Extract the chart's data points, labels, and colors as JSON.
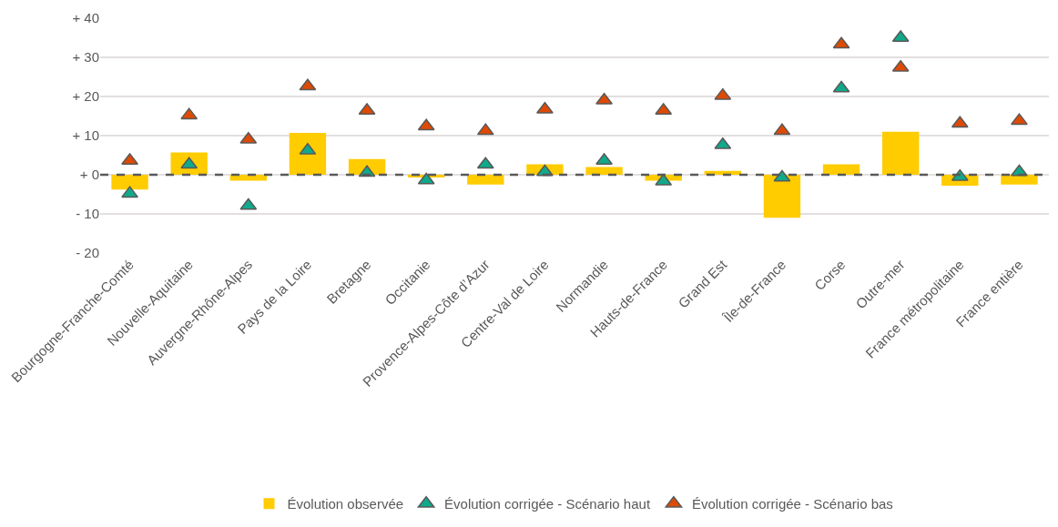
{
  "chart_data": {
    "type": "bar",
    "categories": [
      "Bourgogne-Franche-Comté",
      "Nouvelle-Aquitaine",
      "Auvergne-Rhône-Alpes",
      "Pays de la Loire",
      "Bretagne",
      "Occitanie",
      "Provence-Alpes-Côte d’Azur",
      "Centre-Val de Loire",
      "Normandie",
      "Hauts-de-France",
      "Grand Est",
      "Île-de-France",
      "Corse",
      "Outre-mer",
      "France métropolitaine",
      "France entière"
    ],
    "series": [
      {
        "name": "Évolution observée",
        "color": "#ffcc00",
        "values": [
          -3.8,
          5.7,
          -1.5,
          10.7,
          4,
          -0.7,
          -2.5,
          2.7,
          2,
          -1.5,
          1,
          -11,
          2.7,
          11,
          -2.8,
          -2.5
        ]
      },
      {
        "name": "Évolution corrigée - Scénario haut",
        "type": "scatter",
        "color": "#10a98a",
        "values": [
          -4.8,
          2.6,
          -7.9,
          6.2,
          0.5,
          -1.4,
          2.6,
          0.7,
          3.6,
          -1.7,
          7.6,
          -0.7,
          22.1,
          35,
          -0.5,
          0.7
        ]
      },
      {
        "name": "Évolution corrigée - Scénario bas",
        "type": "scatter",
        "color": "#de4a04",
        "values": [
          3.6,
          15.2,
          9,
          22.6,
          16.4,
          12.4,
          11.2,
          16.7,
          19,
          16.4,
          20.2,
          11.2,
          33.3,
          27.4,
          13.1,
          13.8
        ]
      }
    ],
    "ylim": [
      -20,
      40
    ],
    "yticks": [
      {
        "value": -20,
        "label": "- 20"
      },
      {
        "value": -10,
        "label": "- 10"
      },
      {
        "value": 0,
        "label": "+ 0"
      },
      {
        "value": 10,
        "label": "+ 10"
      },
      {
        "value": 20,
        "label": "+ 20"
      },
      {
        "value": 30,
        "label": "+ 30"
      },
      {
        "value": 40,
        "label": "+ 40"
      }
    ],
    "ref_lines": [
      {
        "axis": "y",
        "value": 0,
        "color": "#595959",
        "line_style": "dashed"
      }
    ],
    "grid": "y",
    "legend": "bottom",
    "marker": "triangle"
  }
}
